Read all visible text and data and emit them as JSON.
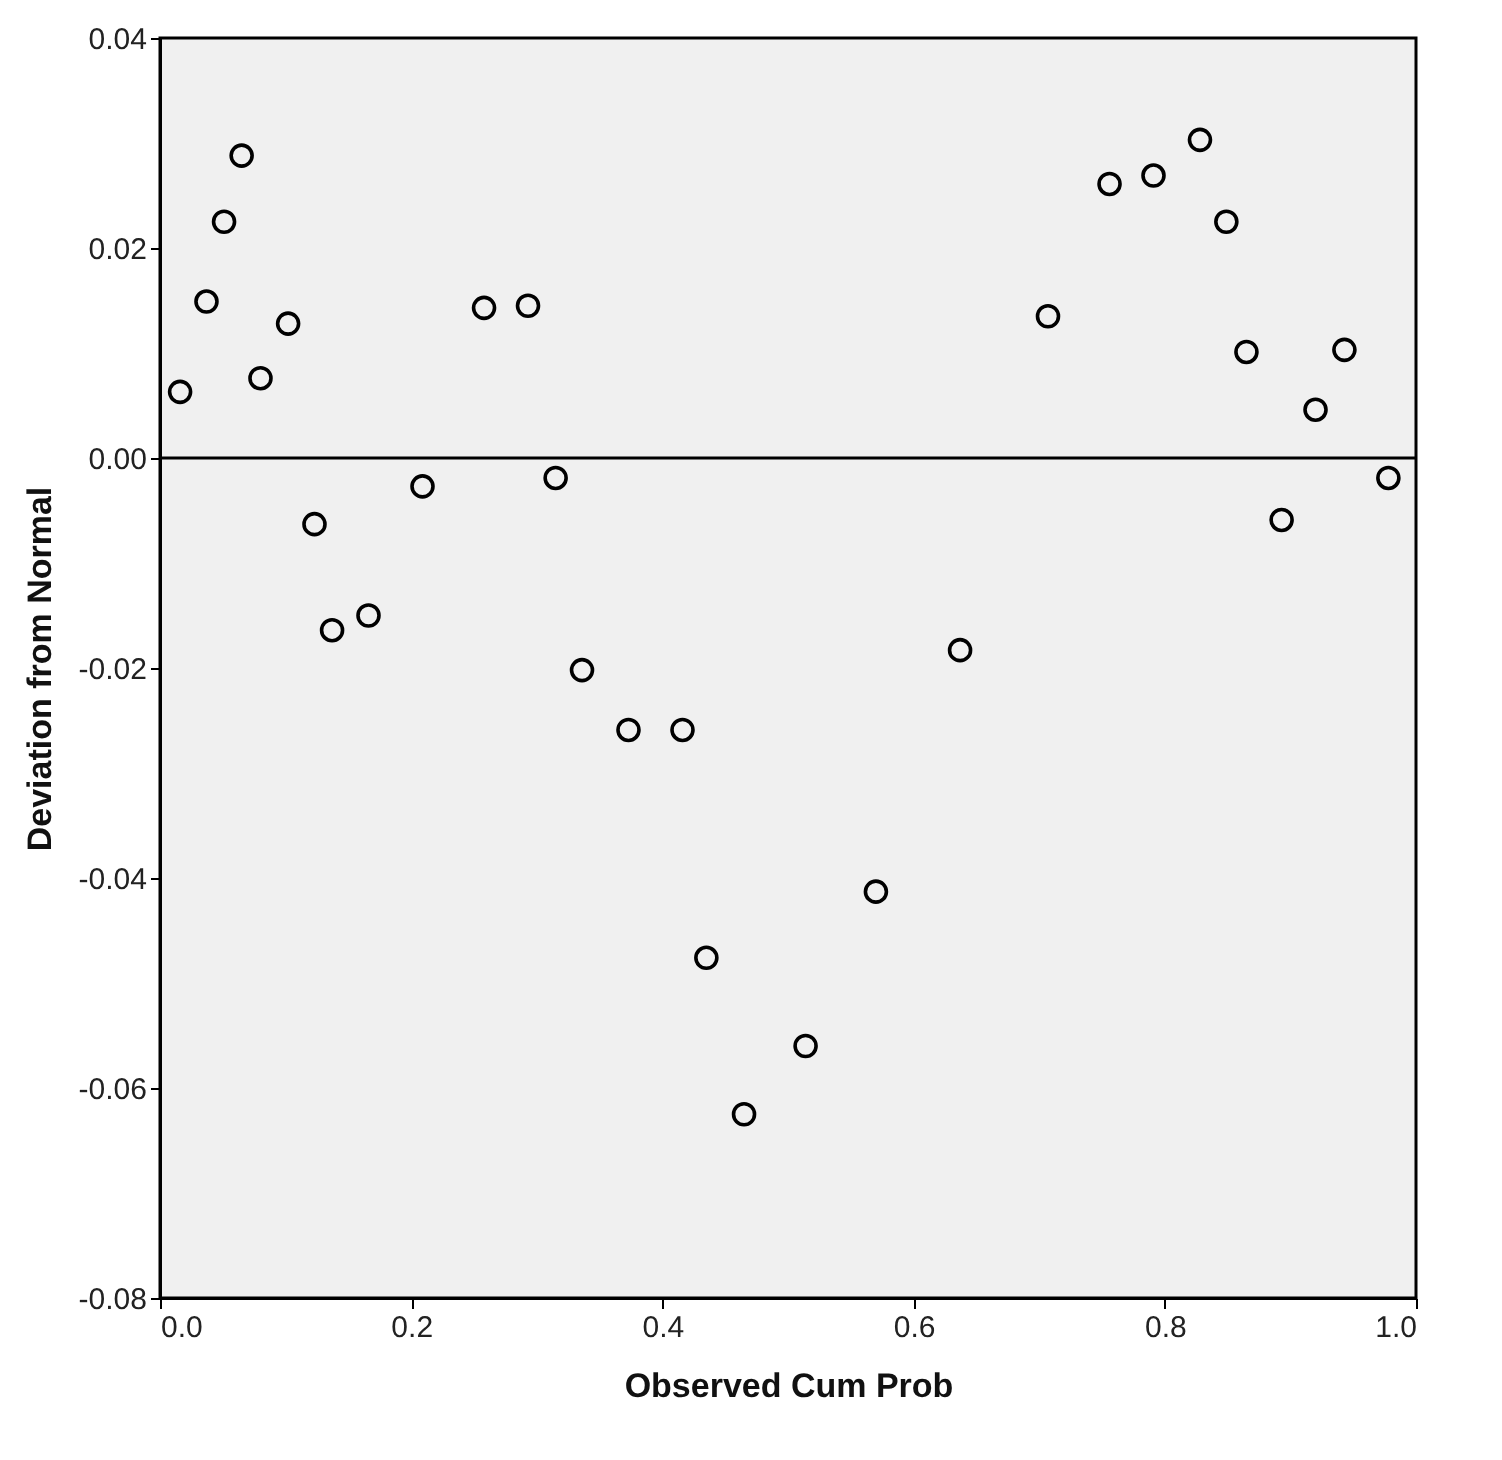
{
  "chart_data": {
    "type": "scatter",
    "xlabel": "Observed Cum Prob",
    "ylabel": "Deviation from Normal",
    "x": [
      0.016,
      0.037,
      0.051,
      0.065,
      0.08,
      0.102,
      0.123,
      0.137,
      0.166,
      0.209,
      0.258,
      0.293,
      0.315,
      0.336,
      0.373,
      0.416,
      0.435,
      0.465,
      0.514,
      0.57,
      0.637,
      0.707,
      0.756,
      0.791,
      0.828,
      0.849,
      0.865,
      0.893,
      0.92,
      0.943,
      0.978
    ],
    "series": [
      {
        "color": "#000000",
        "values": [
          0.0063,
          0.0149,
          0.0225,
          0.0288,
          0.0076,
          0.0128,
          -0.0063,
          -0.0164,
          -0.015,
          -0.0027,
          0.0143,
          0.0145,
          -0.0019,
          -0.0202,
          -0.0259,
          -0.0259,
          -0.0476,
          -0.0625,
          -0.056,
          -0.0413,
          -0.0183,
          0.0135,
          0.0261,
          0.0269,
          0.0303,
          0.0225,
          0.0101,
          -0.0059,
          0.0046,
          0.0103,
          -0.0019
        ]
      }
    ],
    "xlim": [
      0,
      1
    ],
    "xticks": [
      {
        "value": 0,
        "label": "0.0"
      },
      {
        "value": 0.2,
        "label": "0.2"
      },
      {
        "value": 0.4,
        "label": "0.4"
      },
      {
        "value": 0.6,
        "label": "0.6"
      },
      {
        "value": 0.8,
        "label": "0.8"
      },
      {
        "value": 1,
        "label": "1.0"
      }
    ],
    "ylim": [
      -0.08,
      0.04
    ],
    "yticks": [
      {
        "value": -0.08,
        "label": "-0.08"
      },
      {
        "value": -0.06,
        "label": "-0.06"
      },
      {
        "value": -0.04,
        "label": "-0.04"
      },
      {
        "value": -0.02,
        "label": "-0.02"
      },
      {
        "value": 0,
        "label": "0.00"
      },
      {
        "value": 0.02,
        "label": "0.02"
      },
      {
        "value": 0.04,
        "label": "0.04"
      }
    ],
    "ref_lines": [
      {
        "axis": "y",
        "value": 0,
        "color": "#000000"
      }
    ],
    "marker": "circle",
    "grid": false,
    "legend": false
  }
}
